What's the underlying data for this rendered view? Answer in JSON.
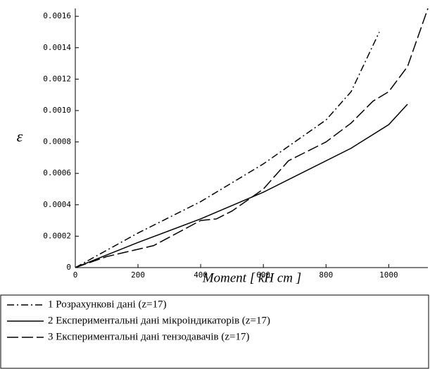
{
  "chart_data": {
    "type": "line",
    "xlabel": "Moment [ kH cm ]",
    "ylabel": "ε",
    "xlim": [
      0,
      1125
    ],
    "xticks": [
      0,
      200,
      400,
      600,
      800,
      1000
    ],
    "ylim": [
      0,
      0.00165
    ],
    "yticks": [
      0,
      0.0002,
      0.0004,
      0.0006,
      0.0008,
      {
        "value": 0.001,
        "label": "0.0010"
      },
      0.0012,
      0.0014,
      0.0016
    ],
    "series": [
      {
        "name": "1 Розрахункові дані (z=17)",
        "color": "#000000",
        "style": "dash-dot",
        "x": [
          0,
          200,
          400,
          600,
          800,
          880,
          970
        ],
        "values": [
          0,
          0.00022,
          0.00042,
          0.00066,
          0.00094,
          0.00112,
          0.0015
        ]
      },
      {
        "name": "2 Експериментальні дані мікроіндикаторів (z=17)",
        "color": "#000000",
        "style": "solid",
        "x": [
          0,
          200,
          400,
          600,
          880,
          1000,
          1060
        ],
        "values": [
          0,
          0.00016,
          0.00031,
          0.00048,
          0.00076,
          0.00091,
          0.00104
        ]
      },
      {
        "name": "3 Експериментальні дані тензодавачів (z=17)",
        "color": "#000000",
        "style": "dashed",
        "x": [
          0,
          100,
          250,
          400,
          450,
          500,
          600,
          680,
          800,
          880,
          950,
          1000,
          1060,
          1125
        ],
        "values": [
          0,
          7e-05,
          0.00014,
          0.0003,
          0.00031,
          0.00036,
          0.0005,
          0.00068,
          0.0008,
          0.00092,
          0.00106,
          0.00112,
          0.00128,
          0.00165
        ]
      }
    ]
  }
}
